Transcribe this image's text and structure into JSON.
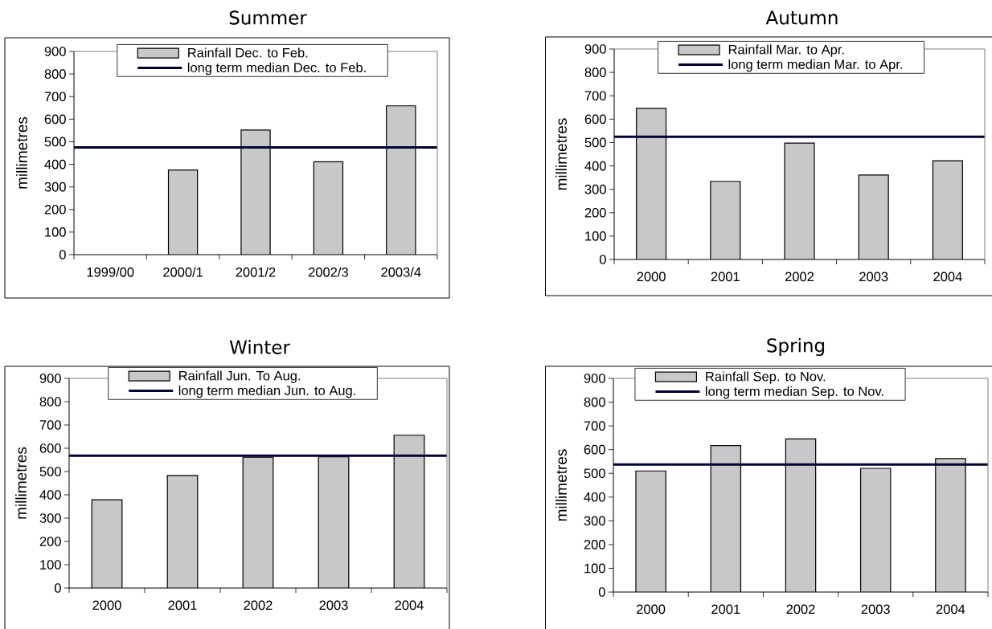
{
  "chart_data": [
    {
      "type": "bar",
      "title": "Summer",
      "ylabel": "millimetres",
      "categories": [
        "1999/00",
        "2000/1",
        "2001/2",
        "2002/3",
        "2003/4"
      ],
      "series": [
        {
          "name": "Rainfall Dec. to Feb.",
          "color": "#c8c8c8",
          "values": [
            null,
            375,
            552,
            411,
            659
          ]
        }
      ],
      "ylim": [
        0,
        900
      ],
      "yticks": [
        0,
        100,
        200,
        300,
        400,
        500,
        600,
        700,
        800,
        900
      ],
      "legend": "top",
      "ref_lines": [
        {
          "axis": "y",
          "value": 475,
          "label": "long term median Dec. to Feb.",
          "color": "#000033"
        }
      ]
    },
    {
      "type": "bar",
      "title": "Autumn",
      "ylabel": "millimetres",
      "categories": [
        "2000",
        "2001",
        "2002",
        "2003",
        "2004"
      ],
      "series": [
        {
          "name": "Rainfall Mar. to Apr.",
          "color": "#c8c8c8",
          "values": [
            646,
            334,
            498,
            361,
            422
          ]
        }
      ],
      "ylim": [
        0,
        900
      ],
      "yticks": [
        0,
        100,
        200,
        300,
        400,
        500,
        600,
        700,
        800,
        900
      ],
      "legend": "top",
      "ref_lines": [
        {
          "axis": "y",
          "value": 525,
          "label": "long term median Mar. to Apr.",
          "color": "#000033"
        }
      ]
    },
    {
      "type": "bar",
      "title": "Winter",
      "ylabel": "millimetres",
      "categories": [
        "2000",
        "2001",
        "2002",
        "2003",
        "2004"
      ],
      "series": [
        {
          "name": "Rainfall Jun. To Aug.",
          "color": "#c8c8c8",
          "values": [
            379,
            483,
            562,
            563,
            656
          ]
        }
      ],
      "ylim": [
        0,
        900
      ],
      "yticks": [
        0,
        100,
        200,
        300,
        400,
        500,
        600,
        700,
        800,
        900
      ],
      "legend": "top",
      "ref_lines": [
        {
          "axis": "y",
          "value": 568,
          "label": "long term median Jun. to Aug.",
          "color": "#000033"
        }
      ]
    },
    {
      "type": "bar",
      "title": "Spring",
      "ylabel": "millimetres",
      "categories": [
        "2000",
        "2001",
        "2002",
        "2003",
        "2004"
      ],
      "series": [
        {
          "name": "Rainfall Sep. to Nov.",
          "color": "#c8c8c8",
          "values": [
            510,
            617,
            645,
            521,
            562
          ]
        }
      ],
      "ylim": [
        0,
        900
      ],
      "yticks": [
        0,
        100,
        200,
        300,
        400,
        500,
        600,
        700,
        800,
        900
      ],
      "legend": "top",
      "ref_lines": [
        {
          "axis": "y",
          "value": 537,
          "label": "long term median Sep. to Nov.",
          "color": "#000033"
        }
      ]
    }
  ]
}
